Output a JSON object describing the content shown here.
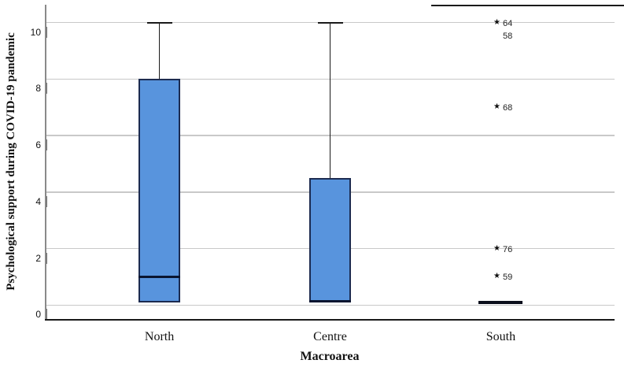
{
  "chart_data": {
    "type": "box",
    "title": "",
    "xlabel": "Macroarea",
    "ylabel": "Psychological support during COVID-19 pandemic",
    "categories": [
      "North",
      "Centre",
      "South"
    ],
    "yticks": [
      0,
      2,
      4,
      6,
      8,
      10
    ],
    "ylim": [
      -0.5,
      10.6
    ],
    "grid": "horizontal-only",
    "legend": "none",
    "series": [
      {
        "category": "North",
        "min": 0.1,
        "q1": 0.1,
        "median": 1.0,
        "q3": 8.0,
        "max": 10.0,
        "outliers": []
      },
      {
        "category": "Centre",
        "min": 0.1,
        "q1": 0.1,
        "median": 0.1,
        "q3": 4.5,
        "max": 10.0,
        "outliers": []
      },
      {
        "category": "South",
        "min": 0.1,
        "q1": 0.1,
        "median": 0.1,
        "q3": 0.1,
        "max": 0.1,
        "outliers": [
          {
            "case": "64",
            "value": 10.0,
            "extreme": true,
            "label_only": false
          },
          {
            "case": "58",
            "value": 10.0,
            "extreme": true,
            "label_only": true
          },
          {
            "case": "68",
            "value": 7.0,
            "extreme": true,
            "label_only": false
          },
          {
            "case": "76",
            "value": 2.0,
            "extreme": true,
            "label_only": false
          },
          {
            "case": "59",
            "value": 1.0,
            "extreme": true,
            "label_only": false
          }
        ]
      }
    ],
    "outlier_marker": "★",
    "colors": {
      "box_fill": "#5894dd",
      "box_border": "#1c2b50",
      "median": "#0a1530",
      "collapsed_box": "#0b0f1c",
      "whisker": "#1a1a1a",
      "gridline": "#c9c9c9",
      "axis_left": "#8a8a8a",
      "axis_bottom": "#1a1a1a",
      "text": "#111111"
    }
  }
}
